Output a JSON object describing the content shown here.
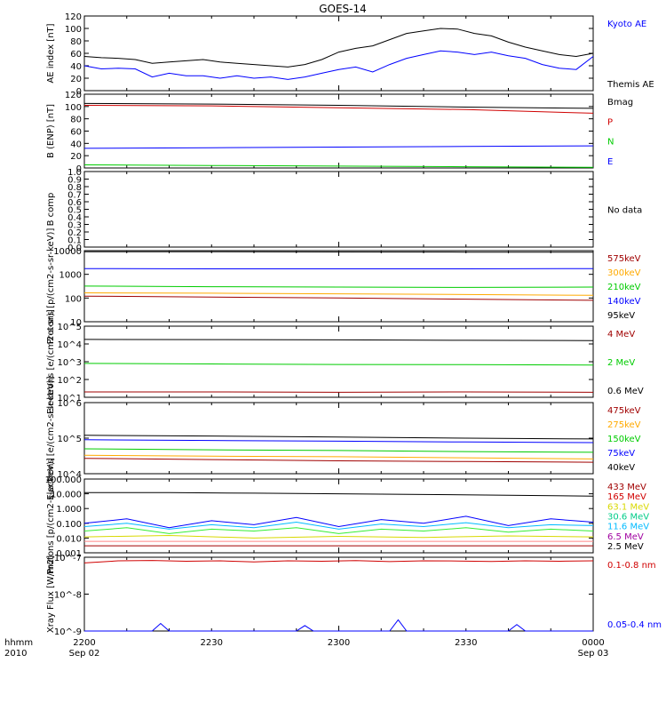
{
  "title": "GOES-14",
  "time_axis": {
    "ticks": [
      "2200",
      "2230",
      "2300",
      "2330",
      "0000"
    ],
    "dates": [
      "Sep 02",
      "Sep 03"
    ],
    "row_labels": [
      "hhmm",
      "2010"
    ]
  },
  "colors": {
    "black": "#000000",
    "blue": "#0000ff",
    "red": "#d00000",
    "green": "#00cc00",
    "darkred": "#a00000",
    "orange": "#ffaa00",
    "cyan": "#00bbff",
    "purple": "#a000a0",
    "yellow": "#d8d800",
    "teal": "#00cc88",
    "brightgreen": "#33ee33"
  },
  "chart_data": [
    {
      "type": "line",
      "ylabel": "AE index [nT]",
      "yscale": "linear",
      "ylim": [
        0,
        120
      ],
      "yticks": [
        "0",
        "20",
        "40",
        "60",
        "80",
        "100",
        "120"
      ],
      "legend": [
        {
          "text": "Kyoto AE",
          "color": "#0000ff"
        },
        {
          "text": "Themis AE",
          "color": "#000000"
        }
      ],
      "series": [
        {
          "name": "Kyoto AE",
          "color": "#0000ff",
          "x": [
            0,
            2,
            4,
            6,
            8,
            10,
            12,
            14,
            16,
            18,
            20,
            22,
            24,
            26,
            28,
            30,
            32,
            34,
            36,
            38,
            40,
            42,
            44,
            46,
            48,
            50,
            52,
            54,
            56,
            58,
            60
          ],
          "y": [
            40,
            35,
            36,
            35,
            22,
            28,
            24,
            24,
            20,
            24,
            20,
            22,
            18,
            22,
            28,
            34,
            38,
            30,
            42,
            52,
            58,
            64,
            62,
            58,
            62,
            56,
            52,
            42,
            36,
            34,
            55
          ]
        },
        {
          "name": "Themis AE",
          "color": "#000000",
          "x": [
            0,
            2,
            4,
            6,
            8,
            10,
            12,
            14,
            16,
            18,
            20,
            22,
            24,
            26,
            28,
            30,
            32,
            34,
            36,
            38,
            40,
            42,
            44,
            46,
            48,
            50,
            52,
            54,
            56,
            58,
            60
          ],
          "y": [
            55,
            53,
            52,
            50,
            44,
            46,
            48,
            50,
            46,
            44,
            42,
            40,
            38,
            42,
            50,
            62,
            68,
            72,
            82,
            92,
            96,
            100,
            99,
            92,
            88,
            78,
            70,
            64,
            58,
            55,
            60
          ]
        }
      ]
    },
    {
      "type": "line",
      "ylabel": "B (ENP) [nT]",
      "yscale": "linear",
      "ylim": [
        0,
        120
      ],
      "yticks": [
        "0",
        "20",
        "40",
        "60",
        "80",
        "100",
        "120"
      ],
      "legend": [
        {
          "text": "Bmag",
          "color": "#000000"
        },
        {
          "text": "P",
          "color": "#d00000"
        },
        {
          "text": "N",
          "color": "#00cc00"
        },
        {
          "text": "E",
          "color": "#0000ff"
        }
      ],
      "series": [
        {
          "name": "Bmag",
          "color": "#000000",
          "x": [
            0,
            15,
            30,
            45,
            60
          ],
          "y": [
            105,
            104,
            102,
            99,
            97
          ]
        },
        {
          "name": "P",
          "color": "#d00000",
          "x": [
            0,
            15,
            30,
            45,
            60
          ],
          "y": [
            102,
            101,
            98,
            95,
            89
          ]
        },
        {
          "name": "N",
          "color": "#00cc00",
          "x": [
            0,
            15,
            30,
            45,
            60
          ],
          "y": [
            5,
            4,
            3,
            2,
            1
          ]
        },
        {
          "name": "E",
          "color": "#0000ff",
          "x": [
            0,
            15,
            30,
            45,
            60
          ],
          "y": [
            32,
            33,
            34,
            35,
            36
          ]
        }
      ]
    },
    {
      "type": "line",
      "ylabel": "B comp",
      "yscale": "linear",
      "ylim": [
        0,
        1
      ],
      "yticks": [
        "0.0",
        "0.1",
        "0.2",
        "0.3",
        "0.4",
        "0.5",
        "0.6",
        "0.7",
        "0.8",
        "0.9",
        "1.0"
      ],
      "legend": [
        {
          "text": "No data",
          "color": "#000000"
        }
      ],
      "series": []
    },
    {
      "type": "line",
      "ylabel": "Protons [p/(cm2-s-sr-keV)]",
      "yscale": "log",
      "ylim": [
        10,
        10000
      ],
      "yticks": [
        "10",
        "100",
        "1000",
        "10000"
      ],
      "legend": [
        {
          "text": "575keV",
          "color": "#a00000"
        },
        {
          "text": "300keV",
          "color": "#ffaa00"
        },
        {
          "text": "210keV",
          "color": "#00cc00"
        },
        {
          "text": "140keV",
          "color": "#0000ff"
        },
        {
          "text": "95keV",
          "color": "#000000"
        }
      ],
      "series": [
        {
          "name": "95keV",
          "color": "#000000",
          "x": [
            0,
            15,
            30,
            45,
            60
          ],
          "y": [
            9000,
            9000,
            8800,
            8600,
            8600
          ]
        },
        {
          "name": "140keV",
          "color": "#0000ff",
          "x": [
            0,
            15,
            30,
            45,
            60
          ],
          "y": [
            1750,
            1700,
            1700,
            1700,
            1750
          ]
        },
        {
          "name": "210keV",
          "color": "#00cc00",
          "x": [
            0,
            15,
            30,
            45,
            60
          ],
          "y": [
            320,
            300,
            290,
            280,
            290
          ]
        },
        {
          "name": "300keV",
          "color": "#ffaa00",
          "x": [
            0,
            15,
            30,
            45,
            60
          ],
          "y": [
            165,
            160,
            150,
            140,
            130
          ]
        },
        {
          "name": "575keV",
          "color": "#a00000",
          "x": [
            0,
            15,
            30,
            45,
            60
          ],
          "y": [
            120,
            110,
            100,
            90,
            80
          ]
        }
      ]
    },
    {
      "type": "line",
      "ylabel": "Electrons [e/(cm2-s-sr)]",
      "yscale": "log",
      "ylim": [
        10,
        100000
      ],
      "yticks": [
        "10^1",
        "10^2",
        "10^3",
        "10^4",
        "10^5"
      ],
      "legend": [
        {
          "text": "4 MeV",
          "color": "#a00000"
        },
        {
          "text": "2 MeV",
          "color": "#00cc00"
        },
        {
          "text": "0.6 MeV",
          "color": "#000000"
        }
      ],
      "series": [
        {
          "name": "0.6 MeV",
          "color": "#000000",
          "x": [
            0,
            15,
            30,
            45,
            60
          ],
          "y": [
            18000,
            17500,
            17000,
            16000,
            15500
          ]
        },
        {
          "name": "2 MeV",
          "color": "#00cc00",
          "x": [
            0,
            15,
            30,
            45,
            60
          ],
          "y": [
            800,
            750,
            700,
            680,
            650
          ]
        },
        {
          "name": "4 MeV",
          "color": "#a00000",
          "x": [
            0,
            15,
            30,
            45,
            60
          ],
          "y": [
            20,
            20,
            19,
            20,
            19
          ]
        }
      ]
    },
    {
      "type": "line",
      "ylabel": "Electrons [e/(cm2-s-sr-keV)]",
      "yscale": "log",
      "ylim": [
        10000,
        1000000
      ],
      "yticks": [
        "10^4",
        "10^5",
        "10^6"
      ],
      "legend": [
        {
          "text": "475keV",
          "color": "#a00000"
        },
        {
          "text": "275keV",
          "color": "#ffaa00"
        },
        {
          "text": "150keV",
          "color": "#00cc00"
        },
        {
          "text": "75keV",
          "color": "#0000ff"
        },
        {
          "text": "40keV",
          "color": "#000000"
        }
      ],
      "series": [
        {
          "name": "40keV",
          "color": "#000000",
          "x": [
            0,
            15,
            30,
            45,
            60
          ],
          "y": [
            120000,
            115000,
            108000,
            100000,
            95000
          ]
        },
        {
          "name": "75keV",
          "color": "#0000ff",
          "x": [
            0,
            15,
            30,
            45,
            60
          ],
          "y": [
            90000,
            86000,
            82000,
            78000,
            75000
          ]
        },
        {
          "name": "150keV",
          "color": "#00cc00",
          "x": [
            0,
            15,
            30,
            45,
            60
          ],
          "y": [
            50000,
            47000,
            45000,
            42000,
            40000
          ]
        },
        {
          "name": "275keV",
          "color": "#ffaa00",
          "x": [
            0,
            15,
            30,
            45,
            60
          ],
          "y": [
            33000,
            31000,
            30000,
            28000,
            26000
          ]
        },
        {
          "name": "475keV",
          "color": "#a00000",
          "x": [
            0,
            15,
            30,
            45,
            60
          ],
          "y": [
            27000,
            25000,
            23000,
            22000,
            21000
          ]
        }
      ]
    },
    {
      "type": "line",
      "ylabel": "Protons [p/(cm2-s-sr-keV)]",
      "yscale": "log",
      "ylim": [
        0.001,
        100
      ],
      "yticks": [
        "0.001",
        "0.010",
        "0.100",
        "1.000",
        "10.000",
        "100.000"
      ],
      "legend": [
        {
          "text": "433 MeV",
          "color": "#a00000"
        },
        {
          "text": "165 MeV",
          "color": "#d00000"
        },
        {
          "text": "63.1 MeV",
          "color": "#d8d800"
        },
        {
          "text": "30.6 MeV",
          "color": "#00cc88"
        },
        {
          "text": "11.6 MeV",
          "color": "#00bbff"
        },
        {
          "text": "6.5 MeV",
          "color": "#a000a0"
        },
        {
          "text": "2.5 MeV",
          "color": "#000000"
        }
      ],
      "series": [
        {
          "name": "2.5 MeV",
          "color": "#000000",
          "x": [
            0,
            10,
            20,
            30,
            40,
            50,
            60
          ],
          "y": [
            12,
            12,
            11,
            10,
            9,
            8,
            7
          ]
        },
        {
          "name": "6.5 MeV",
          "color": "#0000ff",
          "x": [
            0,
            5,
            10,
            15,
            20,
            25,
            30,
            35,
            40,
            45,
            50,
            55,
            60
          ],
          "y": [
            0.1,
            0.2,
            0.05,
            0.15,
            0.08,
            0.25,
            0.06,
            0.18,
            0.1,
            0.3,
            0.07,
            0.2,
            0.12
          ]
        },
        {
          "name": "11.6 MeV",
          "color": "#00bbff",
          "x": [
            0,
            5,
            10,
            15,
            20,
            25,
            30,
            35,
            40,
            45,
            50,
            55,
            60
          ],
          "y": [
            0.06,
            0.1,
            0.04,
            0.08,
            0.05,
            0.12,
            0.04,
            0.09,
            0.06,
            0.11,
            0.05,
            0.08,
            0.07
          ]
        },
        {
          "name": "30.6 MeV",
          "color": "#33ee33",
          "x": [
            0,
            5,
            10,
            15,
            20,
            25,
            30,
            35,
            40,
            45,
            50,
            55,
            60
          ],
          "y": [
            0.03,
            0.05,
            0.02,
            0.04,
            0.03,
            0.05,
            0.02,
            0.04,
            0.03,
            0.05,
            0.025,
            0.04,
            0.03
          ]
        },
        {
          "name": "63.1 MeV",
          "color": "#d8d800",
          "x": [
            0,
            10,
            20,
            30,
            40,
            50,
            60
          ],
          "y": [
            0.012,
            0.015,
            0.01,
            0.013,
            0.011,
            0.014,
            0.012
          ]
        },
        {
          "name": "165 MeV",
          "color": "#ff8888",
          "x": [
            0,
            15,
            30,
            45,
            60
          ],
          "y": [
            0.006,
            0.006,
            0.006,
            0.006,
            0.006
          ]
        },
        {
          "name": "433 MeV",
          "color": "#a00000",
          "x": [
            0,
            15,
            30,
            45,
            60
          ],
          "y": [
            0.003,
            0.003,
            0.003,
            0.003,
            0.003
          ]
        }
      ]
    },
    {
      "type": "line",
      "ylabel": "Xray Flux [W/m2]",
      "yscale": "log",
      "ylim": [
        1e-09,
        1e-07
      ],
      "yticks": [
        "10^-9",
        "10^-8",
        "10^-7"
      ],
      "legend": [
        {
          "text": "0.1-0.8 nm",
          "color": "#d00000"
        },
        {
          "text": "0.05-0.4 nm",
          "color": "#0000ff"
        }
      ],
      "series": [
        {
          "name": "0.1-0.8 nm",
          "color": "#d00000",
          "x": [
            0,
            4,
            8,
            12,
            16,
            20,
            24,
            28,
            32,
            36,
            40,
            44,
            48,
            52,
            56,
            60
          ],
          "y": [
            7e-08,
            8e-08,
            8.2e-08,
            7.8e-08,
            8e-08,
            7.5e-08,
            8e-08,
            7.8e-08,
            8.1e-08,
            7.6e-08,
            8e-08,
            7.9e-08,
            7.7e-08,
            8e-08,
            7.8e-08,
            8e-08
          ]
        },
        {
          "name": "0.05-0.4 nm",
          "color": "#0000ff",
          "x": [
            0,
            8,
            9,
            10,
            20,
            25,
            26,
            27,
            36,
            37,
            38,
            50,
            51,
            52,
            60
          ],
          "y": [
            1e-09,
            1e-09,
            1.6e-09,
            1e-09,
            1e-09,
            1e-09,
            1.4e-09,
            1e-09,
            1e-09,
            2e-09,
            1e-09,
            1e-09,
            1.5e-09,
            1e-09,
            1e-09
          ]
        }
      ]
    }
  ]
}
